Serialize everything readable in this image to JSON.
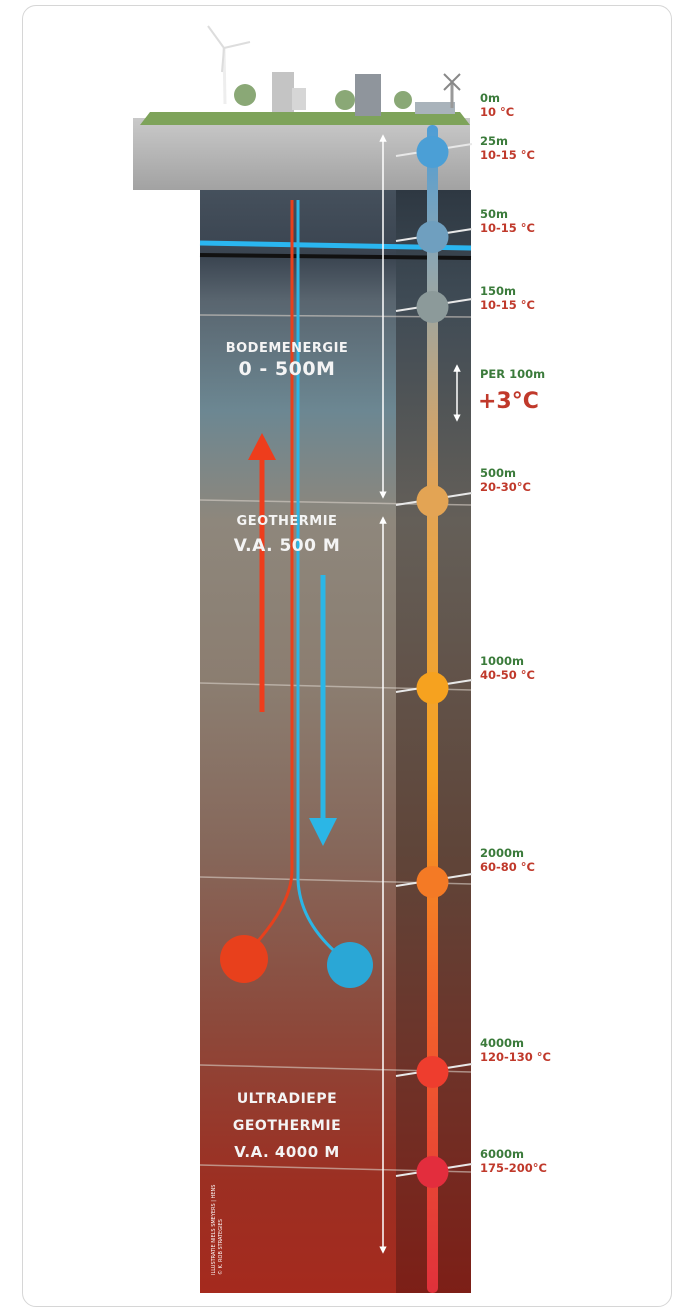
{
  "depth_labels": [
    {
      "depth": "0m",
      "temperature": "10 °C"
    },
    {
      "depth": "25m",
      "temperature": "10-15 °C"
    },
    {
      "depth": "50m",
      "temperature": "10-15 °C"
    },
    {
      "depth": "150m",
      "temperature": "10-15 °C"
    },
    {
      "depth": "500m",
      "temperature": "20-30°C"
    },
    {
      "depth": "1000m",
      "temperature": "40-50 °C"
    },
    {
      "depth": "2000m",
      "temperature": "60-80 °C"
    },
    {
      "depth": "4000m",
      "temperature": "120-130 °C"
    },
    {
      "depth": "6000m",
      "temperature": "175-200°C"
    }
  ],
  "gradient": {
    "label": "PER 100m",
    "value": "+3°C"
  },
  "zones": [
    {
      "lines": [
        "BODEMENERGIE",
        "0 - 500M"
      ]
    },
    {
      "lines": [
        "GEOTHERMIE",
        "V.A. 500 M"
      ]
    },
    {
      "lines": [
        "ULTRADIEPE",
        "GEOTHERMIE",
        "V.A. 4000 M"
      ]
    }
  ],
  "credit": [
    "ILLUSTRATIE NIELS SMEYERS | HENS",
    "© K. ROB STRATEGIES"
  ]
}
